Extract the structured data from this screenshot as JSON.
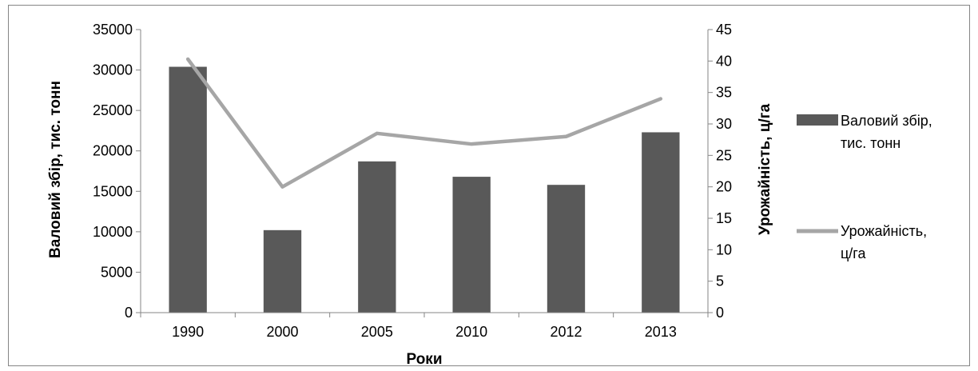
{
  "chart_data": {
    "type": "bar+line",
    "categories": [
      "1990",
      "2000",
      "2005",
      "2010",
      "2012",
      "2013"
    ],
    "series": [
      {
        "name": "Валовий збір, тис. тонн",
        "type": "bar",
        "axis": "left",
        "color": "#595959",
        "values": [
          30400,
          10200,
          18700,
          16800,
          15800,
          22300
        ]
      },
      {
        "name": "Урожайність, ц/га",
        "type": "line",
        "axis": "right",
        "color": "#A6A6A6",
        "values": [
          40.3,
          20.0,
          28.5,
          26.8,
          28.0,
          34.0
        ]
      }
    ],
    "xlabel": "Роки",
    "ylabel": "Валовий збір, тис. тонн",
    "y2label": "Урожайність, ц/га",
    "ylim": [
      0,
      35000
    ],
    "y2lim": [
      0,
      45
    ],
    "yticks": [
      "0",
      "5000",
      "10000",
      "15000",
      "20000",
      "25000",
      "30000",
      "35000"
    ],
    "y2ticks": [
      "0",
      "5",
      "10",
      "15",
      "20",
      "25",
      "30",
      "35",
      "40",
      "45"
    ],
    "legend": {
      "position": "right",
      "bar_label_line1": "Валовий збір,",
      "bar_label_line2": "тис. тонн",
      "line_label_line1": "Урожайність,",
      "line_label_line2": "ц/га"
    },
    "grid": false
  }
}
